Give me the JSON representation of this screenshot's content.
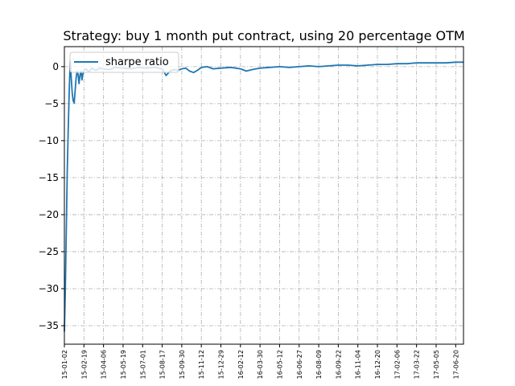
{
  "chart_data": {
    "type": "line",
    "title": "Strategy: buy 1 month put contract, using 20 percentage OTM",
    "xlabel": "",
    "ylabel": "",
    "ylim": [
      -37.5,
      2.7
    ],
    "yticks": [
      0,
      -5,
      -10,
      -15,
      -20,
      -25,
      -30,
      -35
    ],
    "ytick_labels": [
      "0",
      "−5",
      "−10",
      "−15",
      "−20",
      "−25",
      "−30",
      "−35"
    ],
    "xtick_labels": [
      "15-01-02",
      "15-02-19",
      "15-04-06",
      "15-05-19",
      "15-07-01",
      "15-08-17",
      "15-09-30",
      "15-11-12",
      "15-12-29",
      "16-02-12",
      "16-03-30",
      "16-05-12",
      "16-06-27",
      "16-08-09",
      "16-09-22",
      "16-11-04",
      "16-12-20",
      "17-02-06",
      "17-03-22",
      "17-05-05",
      "17-06-20"
    ],
    "grid": true,
    "legend": "upper left",
    "series": [
      {
        "name": "sharpe ratio",
        "color": "#1f77b4",
        "x": [
          0,
          0.05,
          0.1,
          0.15,
          0.2,
          0.25,
          0.3,
          0.35,
          0.4,
          0.45,
          0.5,
          0.55,
          0.6,
          0.65,
          0.7,
          0.75,
          0.8,
          0.85,
          0.9,
          0.95,
          1.0,
          1.1,
          1.25,
          1.4,
          1.6,
          1.8,
          2.0,
          2.3,
          2.6,
          3.0,
          3.4,
          3.8,
          4.2,
          4.6,
          5.0,
          5.2,
          5.4,
          5.6,
          5.8,
          6.0,
          6.2,
          6.4,
          6.6,
          6.8,
          7.0,
          7.3,
          7.6,
          8.0,
          8.5,
          9.0,
          9.3,
          9.6,
          10.0,
          10.5,
          11.0,
          11.5,
          12.0,
          12.5,
          13.0,
          13.5,
          14.0,
          14.5,
          15.0,
          15.5,
          16.0,
          16.5,
          17.0,
          17.5,
          18.0,
          18.5,
          19.0,
          19.5,
          20.0,
          20.4
        ],
        "y": [
          -35.8,
          -30,
          -22,
          -14,
          -8,
          -3,
          0.8,
          -1.5,
          -3.5,
          -4.6,
          -4.9,
          -3.2,
          -1.5,
          -0.6,
          -1.0,
          -2.3,
          -1.1,
          -0.6,
          -1.8,
          -0.9,
          -0.5,
          -0.3,
          -0.7,
          -0.2,
          -0.5,
          -0.2,
          -0.3,
          -0.4,
          -0.1,
          -0.2,
          -0.3,
          -0.1,
          -0.2,
          -0.1,
          -0.3,
          -1.2,
          -0.6,
          -0.4,
          -0.5,
          -0.3,
          -0.2,
          -0.6,
          -0.8,
          -0.5,
          -0.1,
          0.0,
          -0.3,
          -0.2,
          -0.1,
          -0.3,
          -0.6,
          -0.4,
          -0.2,
          -0.1,
          0.0,
          -0.1,
          0.0,
          0.1,
          0.0,
          0.1,
          0.2,
          0.2,
          0.1,
          0.2,
          0.3,
          0.3,
          0.4,
          0.4,
          0.5,
          0.5,
          0.5,
          0.5,
          0.6,
          0.6
        ]
      }
    ]
  }
}
